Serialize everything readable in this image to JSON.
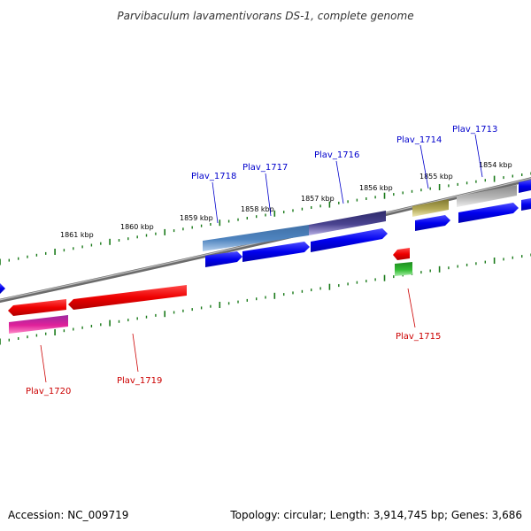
{
  "title": "Parvibaculum lavamentivorans DS-1, complete genome",
  "footer": {
    "accession": "Accession: NC_009719",
    "summary": "Topology: circular; Length: 3,914,745 bp; Genes: 3,686"
  },
  "colors": {
    "backbone": "#808080",
    "ticks": "#1a7a1a",
    "forward_cds": "#0000ee",
    "reverse_cds": "#ee0000",
    "label_top": "#0000cc",
    "label_bottom": "#cc0000"
  },
  "scale_labels": [
    "1861 kbp",
    "1860 kbp",
    "1859 kbp",
    "1858 kbp",
    "1857 kbp",
    "1856 kbp",
    "1855 kbp",
    "1854 kbp"
  ],
  "gene_labels_top": [
    "Plav_1718",
    "Plav_1717",
    "Plav_1716",
    "Plav_1714",
    "Plav_1713"
  ],
  "gene_labels_bottom": [
    "Plav_1720",
    "Plav_1719",
    "Plav_1715"
  ]
}
